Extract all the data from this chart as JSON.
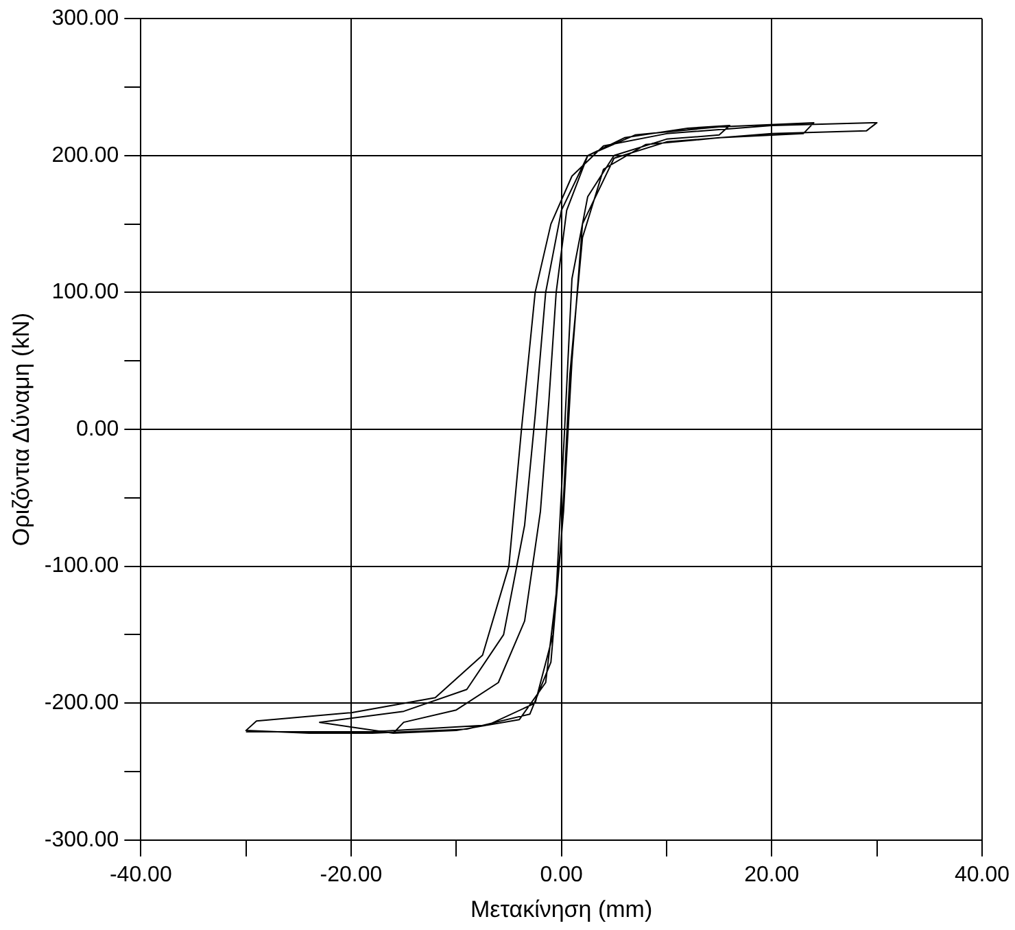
{
  "chart_data": {
    "type": "line",
    "xlabel": "Μετακίνηση (mm)",
    "ylabel": "Οριζόντια Δύναμη (kN)",
    "xlim": [
      -40,
      40
    ],
    "ylim": [
      -300,
      300
    ],
    "xticks": [
      {
        "value": -40,
        "label": "-40.00"
      },
      {
        "value": -30,
        "label": null
      },
      {
        "value": -20,
        "label": "-20.00"
      },
      {
        "value": -10,
        "label": null
      },
      {
        "value": 0,
        "label": "0.00"
      },
      {
        "value": 10,
        "label": null
      },
      {
        "value": 20,
        "label": "20.00"
      },
      {
        "value": 30,
        "label": null
      },
      {
        "value": 40,
        "label": "40.00"
      }
    ],
    "yticks": [
      {
        "value": -300,
        "label": "-300.00"
      },
      {
        "value": -250,
        "label": null
      },
      {
        "value": -200,
        "label": "-200.00"
      },
      {
        "value": -150,
        "label": null
      },
      {
        "value": -100,
        "label": "-100.00"
      },
      {
        "value": -50,
        "label": null
      },
      {
        "value": 0,
        "label": "0.00"
      },
      {
        "value": 50,
        "label": null
      },
      {
        "value": 100,
        "label": "100.00"
      },
      {
        "value": 150,
        "label": null
      },
      {
        "value": 200,
        "label": "200.00"
      },
      {
        "value": 250,
        "label": null
      },
      {
        "value": 300,
        "label": "300.00"
      }
    ],
    "grid": true,
    "legend": false,
    "marker": "none",
    "line_style": "solid",
    "series": [
      {
        "color": "#000000",
        "x": [
          -16,
          -15,
          -10,
          -6,
          -3.5,
          -2,
          -1.2,
          -0.5,
          0.5,
          2.5,
          6,
          12,
          16,
          15,
          10,
          5,
          2.5,
          1,
          0.3,
          -0.5,
          -1.5,
          -4,
          -10,
          -16,
          -23,
          -15,
          -9,
          -5.5,
          -3.5,
          -2.5,
          -1.5,
          0,
          2.5,
          7,
          15,
          24,
          23,
          15,
          8,
          4,
          2,
          0.8,
          0,
          -1,
          -3,
          -9,
          -18,
          -24,
          -30,
          -29,
          -20,
          -12,
          -7.5,
          -5,
          -3.8,
          -2.5,
          -1,
          1,
          4,
          10,
          20,
          30,
          29,
          20,
          10,
          5,
          2,
          1,
          0.2,
          -0.8,
          -2.5,
          -7,
          -18,
          -30
        ],
        "values": [
          -222,
          -214,
          -205,
          -185,
          -140,
          -60,
          20,
          100,
          160,
          200,
          213,
          220,
          222,
          215,
          212,
          200,
          170,
          110,
          0,
          -120,
          -185,
          -212,
          -220,
          -222,
          -214,
          -206,
          -190,
          -150,
          -70,
          10,
          100,
          160,
          200,
          215,
          221,
          224,
          216,
          213,
          208,
          190,
          140,
          40,
          -80,
          -170,
          -208,
          -219,
          -222,
          -222,
          -220,
          -213,
          -207,
          -196,
          -165,
          -100,
          0,
          100,
          150,
          185,
          207,
          216,
          222,
          224,
          218,
          216,
          210,
          198,
          150,
          50,
          -60,
          -150,
          -200,
          -216,
          -221,
          -221
        ]
      }
    ]
  }
}
